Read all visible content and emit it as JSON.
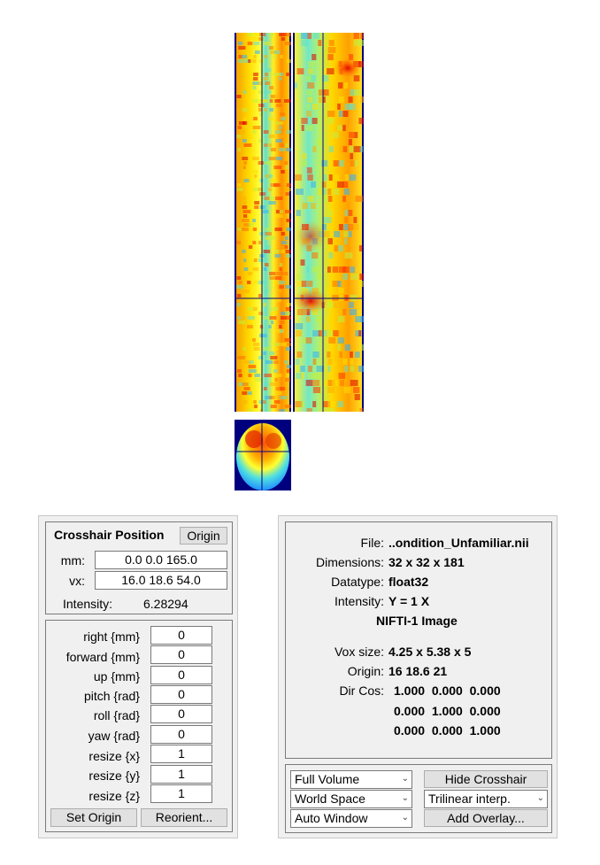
{
  "views": {
    "sagittal_label": "sagittal-view",
    "coronal_label": "coronal-view",
    "axial_label": "axial-view"
  },
  "crosshair": {
    "title": "Crosshair Position",
    "origin_button": "Origin",
    "mm_label": "mm:",
    "mm_value": "0.0 0.0 165.0",
    "vx_label": "vx:",
    "vx_value": "16.0 18.6 54.0",
    "intensity_label": "Intensity:",
    "intensity_value": "6.28294"
  },
  "transform": {
    "rows": [
      {
        "label": "right  {mm}",
        "value": "0"
      },
      {
        "label": "forward  {mm}",
        "value": "0"
      },
      {
        "label": "up  {mm}",
        "value": "0"
      },
      {
        "label": "pitch  {rad}",
        "value": "0"
      },
      {
        "label": "roll  {rad}",
        "value": "0"
      },
      {
        "label": "yaw  {rad}",
        "value": "0"
      },
      {
        "label": "resize  {x}",
        "value": "1"
      },
      {
        "label": "resize  {y}",
        "value": "1"
      },
      {
        "label": "resize  {z}",
        "value": "1"
      }
    ],
    "set_origin_button": "Set Origin",
    "reorient_button": "Reorient..."
  },
  "info": {
    "file_label": "File:",
    "file_value": "..ondition_Unfamiliar.nii",
    "dimensions_label": "Dimensions:",
    "dimensions_value": "32 x 32 x 181",
    "datatype_label": "Datatype:",
    "datatype_value": "float32",
    "intensity_label": "Intensity:",
    "intensity_value": "Y = 1 X",
    "format": "NIFTI-1 Image",
    "voxsize_label": "Vox size:",
    "voxsize_value": "4.25 x 5.38 x 5",
    "origin_label": "Origin:",
    "origin_value": "16 18.6 21",
    "dircos_label": "Dir Cos:",
    "dircos_rows": [
      "1.000  0.000  0.000",
      "0.000  1.000  0.000",
      "0.000  0.000  1.000"
    ]
  },
  "controls": {
    "volume_select": "Full Volume",
    "space_select": "World Space",
    "window_select": "Auto Window",
    "hide_crosshair_button": "Hide Crosshair",
    "interp_select": "Trilinear interp.",
    "add_overlay_button": "Add Overlay..."
  },
  "colors": {
    "background_dark_blue": "#00007f",
    "crosshair_line": "#000080"
  }
}
